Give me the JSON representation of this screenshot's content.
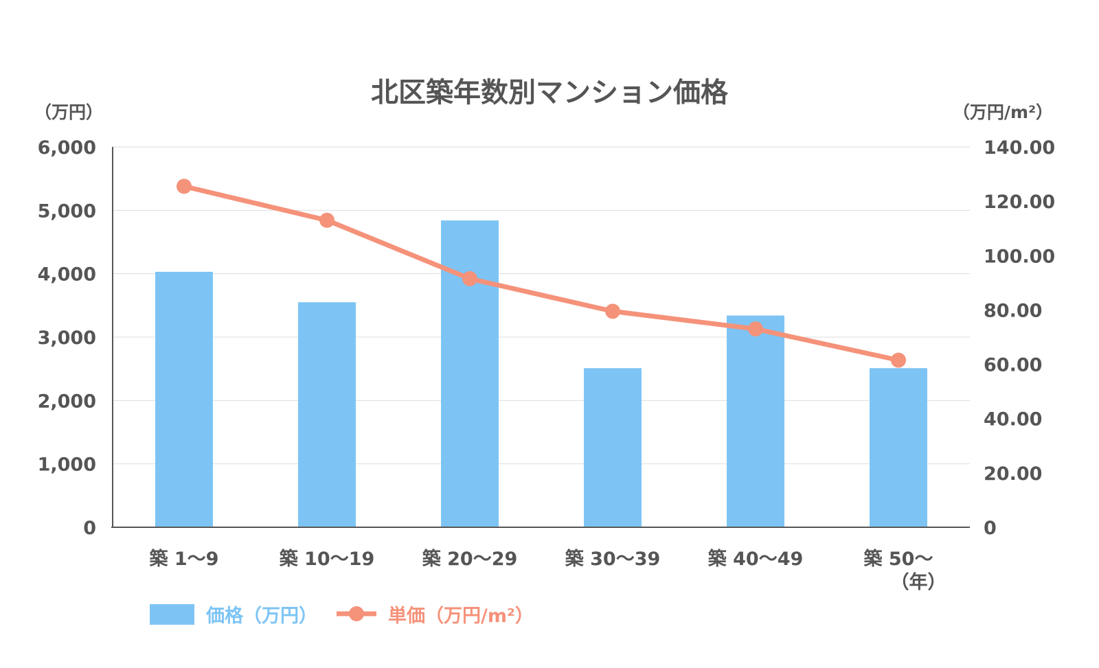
{
  "chart_data": {
    "type": "bar",
    "title": "北区築年数別マンション価格",
    "left_axis_unit": "（万円）",
    "right_axis_unit": "（万円/m²）",
    "x_unit": "（年）",
    "categories": [
      "築 1〜9",
      "築 10〜19",
      "築 20〜29",
      "築 30〜39",
      "築 40〜49",
      "築 50〜"
    ],
    "left_ticks": [
      "0",
      "1,000",
      "2,000",
      "3,000",
      "4,000",
      "5,000",
      "6,000"
    ],
    "right_ticks": [
      "0",
      "20.00",
      "40.00",
      "60.00",
      "80.00",
      "100.00",
      "120.00",
      "140.00"
    ],
    "ylim_left": [
      0,
      6000
    ],
    "ylim_right": [
      0,
      140
    ],
    "grid": true,
    "legend_placement": "bottom-left",
    "series": [
      {
        "name": "価格（万円）",
        "type": "bar",
        "axis": "left",
        "color": "#7dc4f5",
        "values": [
          4030,
          3550,
          4840,
          2510,
          3340,
          2510
        ]
      },
      {
        "name": "単価（万円/m²）",
        "type": "line",
        "axis": "right",
        "color": "#f5927a",
        "values": [
          125.5,
          113.0,
          91.5,
          79.5,
          73.0,
          61.5
        ]
      }
    ]
  }
}
